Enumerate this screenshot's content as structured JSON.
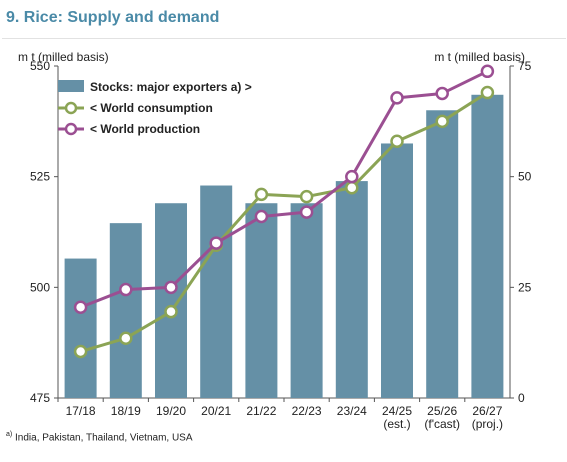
{
  "title": "9. Rice: Supply and demand",
  "footnote": {
    "marker": "a)",
    "text": "India, Pakistan, Thailand, Vietnam, USA"
  },
  "colors": {
    "bars": "#6590a6",
    "consumption": "#8ba455",
    "production": "#9b4f92",
    "title": "#4a8aa7"
  },
  "chart_data": {
    "type": "bar+line",
    "title": "9. Rice: Supply and demand",
    "categories": [
      [
        "17/18"
      ],
      [
        "18/19"
      ],
      [
        "19/20"
      ],
      [
        "20/21"
      ],
      [
        "21/22"
      ],
      [
        "22/23"
      ],
      [
        "23/24"
      ],
      [
        "24/25",
        "(est.)"
      ],
      [
        "25/26",
        "(f'cast)"
      ],
      [
        "26/27",
        "(proj.)"
      ]
    ],
    "left_axis": {
      "label": "m t (milled basis)",
      "range": [
        475,
        550
      ],
      "ticks": [
        475,
        500,
        525,
        550
      ]
    },
    "right_axis": {
      "label": "m t (milled basis)",
      "range": [
        0,
        75
      ],
      "ticks": [
        0,
        25,
        50,
        75
      ]
    },
    "legend": {
      "position": "top-left"
    },
    "grid": false,
    "series": [
      {
        "name": "Stocks: major exporters a) >",
        "type": "bar",
        "axis": "right",
        "values": [
          31.5,
          39.5,
          44,
          48,
          44,
          44,
          49,
          57.5,
          65,
          68.5
        ]
      },
      {
        "name": "< World consumption",
        "type": "line",
        "axis": "left",
        "values": [
          485.5,
          488.5,
          494.5,
          509.5,
          521,
          520.5,
          522.5,
          533,
          537.5,
          544
        ]
      },
      {
        "name": "< World production",
        "type": "line",
        "axis": "left",
        "values": [
          495.5,
          499.5,
          500,
          510,
          516,
          517,
          525,
          542.8,
          543.8,
          548.8
        ]
      }
    ]
  }
}
